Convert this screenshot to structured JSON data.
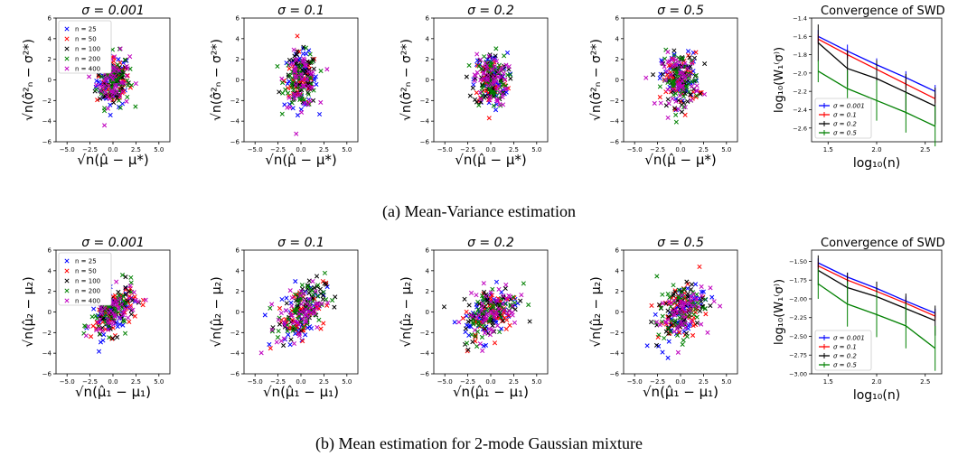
{
  "captions": {
    "a": "(a) Mean-Variance estimation",
    "b": "(b) Mean estimation for 2-mode Gaussian mixture"
  },
  "colors": {
    "n25": "#0000ff",
    "n50": "#ff0000",
    "n100": "#000000",
    "n200": "#008000",
    "n400": "#bf00bf",
    "s0001": "#0000ff",
    "s01": "#ff0000",
    "s02": "#000000",
    "s05": "#008000"
  },
  "chart_data": [
    {
      "type": "scatter",
      "row": "a",
      "titles": [
        "σ = 0.001",
        "σ = 0.1",
        "σ = 0.2",
        "σ = 0.5"
      ],
      "xlabel": "√n(μ̂ − μ*)",
      "ylabel": "√n(σ̂²ₙ − σ²*)",
      "xlim": [
        -6.2,
        6.2
      ],
      "ylim": [
        -6,
        6
      ],
      "xticks": [
        "−5.0",
        "−2.5",
        "0.0",
        "2.5",
        "5.0"
      ],
      "xtick_values": [
        -5,
        -2.5,
        0,
        2.5,
        5
      ],
      "yticks": [
        "−6",
        "−4",
        "−2",
        "0",
        "2",
        "4",
        "6"
      ],
      "ytick_values": [
        -6,
        -4,
        -2,
        0,
        2,
        4,
        6
      ],
      "legend": [
        "n = 25",
        "n = 50",
        "n = 100",
        "n = 200",
        "n = 400"
      ],
      "spread": [
        {
          "sx": 0.9,
          "sy": 1.3,
          "corr": 0
        },
        {
          "sx": 0.9,
          "sy": 1.3,
          "corr": 0
        },
        {
          "sx": 0.9,
          "sy": 1.3,
          "corr": 0
        },
        {
          "sx": 1.0,
          "sy": 1.3,
          "corr": 0
        }
      ]
    },
    {
      "type": "line",
      "row": "a",
      "title": "Convergence of SWD",
      "xlabel": "log₁₀(n)",
      "ylabel": "log₁₀(W₁⁽σ⁾)",
      "xlim": [
        1.33,
        2.67
      ],
      "ylim": [
        -2.75,
        -1.4
      ],
      "xticks": [
        "1.5",
        "2.0",
        "2.5"
      ],
      "xtick_values": [
        1.5,
        2.0,
        2.5
      ],
      "yticks": [
        "−1.4",
        "−1.6",
        "−1.8",
        "−2.0",
        "−2.2",
        "−2.4",
        "−2.6"
      ],
      "ytick_values": [
        -1.4,
        -1.6,
        -1.8,
        -2.0,
        -2.2,
        -2.4,
        -2.6
      ],
      "x": [
        1.398,
        1.699,
        2.0,
        2.301,
        2.602
      ],
      "series": [
        {
          "name": "σ = 0.001",
          "values": [
            -1.6,
            -1.76,
            -1.91,
            -2.05,
            -2.2
          ],
          "err": [
            0.07,
            0.07,
            0.07,
            0.07,
            0.07
          ]
        },
        {
          "name": "σ = 0.1",
          "values": [
            -1.63,
            -1.8,
            -1.96,
            -2.12,
            -2.28
          ],
          "err": [
            0.05,
            0.05,
            0.05,
            0.05,
            0.05
          ]
        },
        {
          "name": "σ = 0.2",
          "values": [
            -1.67,
            -1.95,
            -2.06,
            -2.21,
            -2.36
          ],
          "err": [
            0.2,
            0.2,
            0.2,
            0.2,
            0.2
          ]
        },
        {
          "name": "σ = 0.5",
          "values": [
            -1.98,
            -2.17,
            -2.3,
            -2.43,
            -2.58
          ],
          "err": [
            0.12,
            0.2,
            0.22,
            0.22,
            0.22
          ]
        }
      ]
    },
    {
      "type": "scatter",
      "row": "b",
      "titles": [
        "σ = 0.001",
        "σ = 0.1",
        "σ = 0.2",
        "σ = 0.5"
      ],
      "xlabel": "√n(μ̂₁ − μ₁)",
      "ylabel": "√n(μ̂₂ − μ₂)",
      "xlim": [
        -6.2,
        6.2
      ],
      "ylim": [
        -6,
        6
      ],
      "xticks": [
        "−5.0",
        "−2.5",
        "0.0",
        "2.5",
        "5.0"
      ],
      "xtick_values": [
        -5,
        -2.5,
        0,
        2.5,
        5
      ],
      "yticks": [
        "−6",
        "−4",
        "−2",
        "0",
        "2",
        "4",
        "6"
      ],
      "ytick_values": [
        -6,
        -4,
        -2,
        0,
        2,
        4,
        6
      ],
      "legend": [
        "n = 25",
        "n = 50",
        "n = 100",
        "n = 200",
        "n = 400"
      ],
      "spread": [
        {
          "sx": 1.2,
          "sy": 1.2,
          "corr": 0.45
        },
        {
          "sx": 1.3,
          "sy": 1.4,
          "corr": 0.45
        },
        {
          "sx": 1.5,
          "sy": 1.4,
          "corr": 0.45
        },
        {
          "sx": 1.3,
          "sy": 1.4,
          "corr": 0.4
        }
      ]
    },
    {
      "type": "line",
      "row": "b",
      "title": "Convergence of SWD",
      "xlabel": "log₁₀(n)",
      "ylabel": "log₁₀(W₁⁽σ⁾)",
      "xlim": [
        1.33,
        2.67
      ],
      "ylim": [
        -3.0,
        -1.35
      ],
      "xticks": [
        "1.5",
        "2.0",
        "2.5"
      ],
      "xtick_values": [
        1.5,
        2.0,
        2.5
      ],
      "yticks": [
        "−1.50",
        "−1.75",
        "−2.00",
        "−2.25",
        "−2.50",
        "−2.75",
        "−3.00"
      ],
      "ytick_values": [
        -1.5,
        -1.75,
        -2.0,
        -2.25,
        -2.5,
        -2.75,
        -3.0
      ],
      "x": [
        1.398,
        1.699,
        2.0,
        2.301,
        2.602
      ],
      "series": [
        {
          "name": "σ = 0.001",
          "values": [
            -1.52,
            -1.71,
            -1.86,
            -2.03,
            -2.19
          ],
          "err": [
            0.06,
            0.06,
            0.06,
            0.06,
            0.06
          ]
        },
        {
          "name": "σ = 0.1",
          "values": [
            -1.56,
            -1.75,
            -1.9,
            -2.06,
            -2.23
          ],
          "err": [
            0.05,
            0.05,
            0.05,
            0.05,
            0.05
          ]
        },
        {
          "name": "σ = 0.2",
          "values": [
            -1.62,
            -1.85,
            -1.97,
            -2.13,
            -2.29
          ],
          "err": [
            0.2,
            0.2,
            0.2,
            0.2,
            0.2
          ]
        },
        {
          "name": "σ = 0.5",
          "values": [
            -1.8,
            -2.07,
            -2.21,
            -2.36,
            -2.66
          ],
          "err": [
            0.2,
            0.3,
            0.3,
            0.3,
            0.3
          ]
        }
      ]
    }
  ]
}
